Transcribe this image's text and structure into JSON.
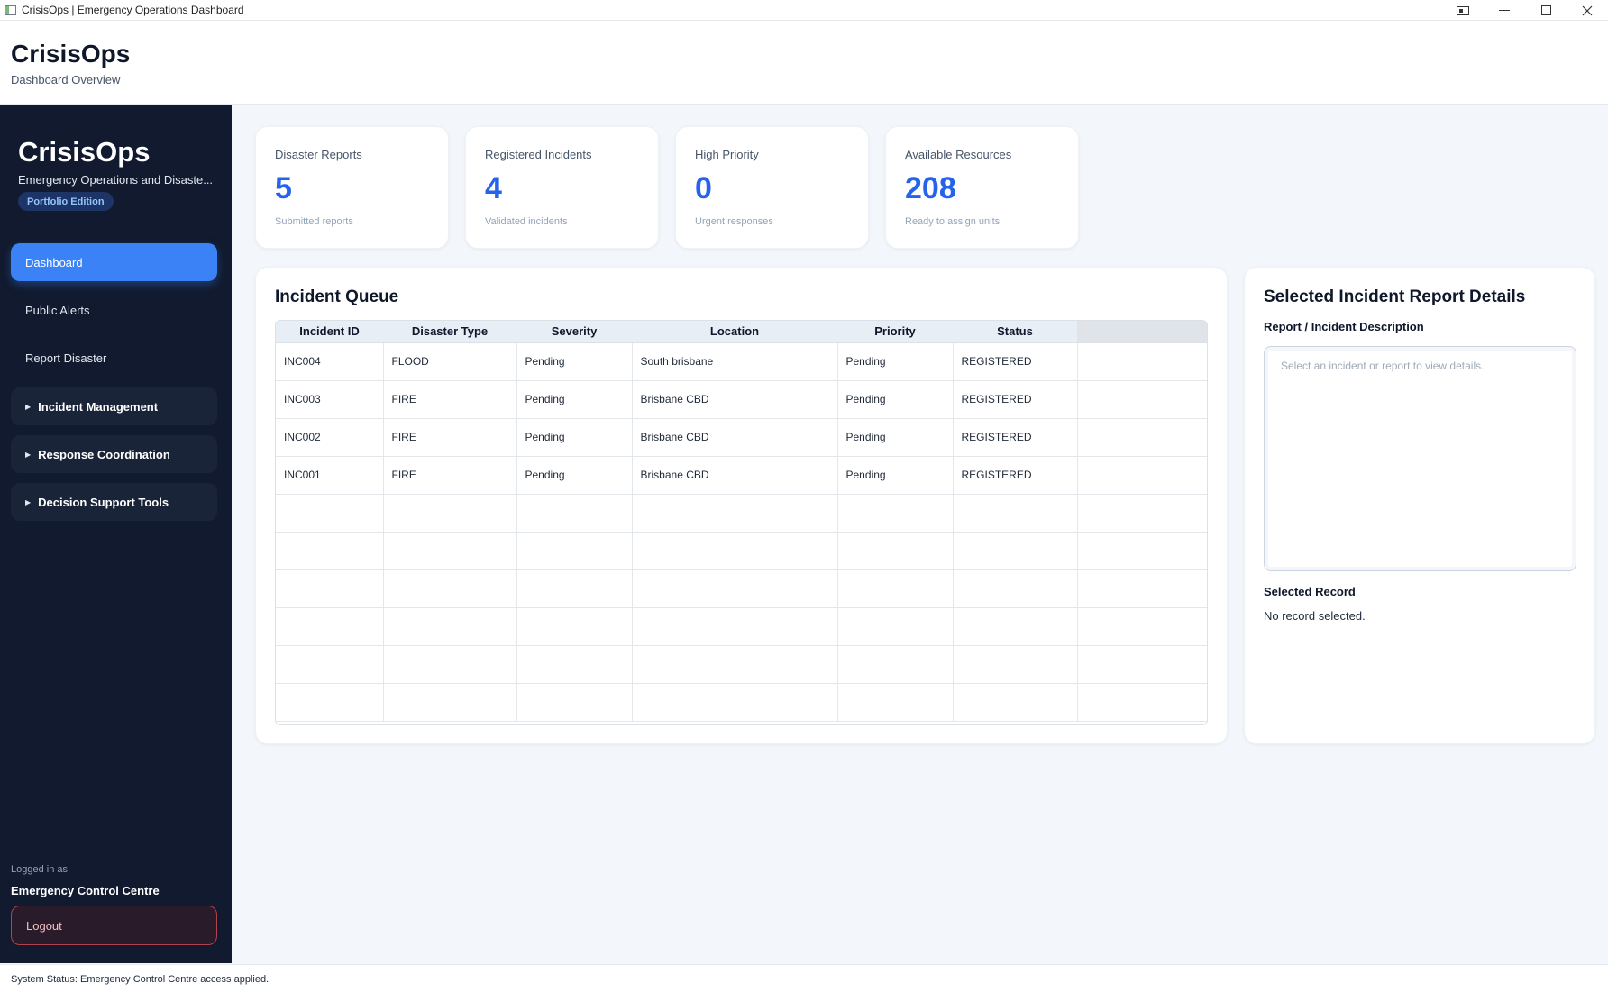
{
  "window": {
    "title": "CrisisOps | Emergency Operations Dashboard"
  },
  "header": {
    "brand": "CrisisOps",
    "subtitle": "Dashboard Overview"
  },
  "sidebar": {
    "title": "CrisisOps",
    "description": "Emergency Operations and Disaste...",
    "badge": "Portfolio Edition",
    "items": [
      {
        "label": "Dashboard"
      },
      {
        "label": "Public Alerts"
      },
      {
        "label": "Report Disaster"
      }
    ],
    "groups": [
      {
        "label": "Incident Management"
      },
      {
        "label": "Response Coordination"
      },
      {
        "label": "Decision Support Tools"
      }
    ],
    "logged_in_label": "Logged in as",
    "logged_in_user": "Emergency Control Centre",
    "logout_label": "Logout"
  },
  "stats": [
    {
      "label": "Disaster Reports",
      "value": "5",
      "sub": "Submitted reports"
    },
    {
      "label": "Registered Incidents",
      "value": "4",
      "sub": "Validated incidents"
    },
    {
      "label": "High Priority",
      "value": "0",
      "sub": "Urgent responses"
    },
    {
      "label": "Available Resources",
      "value": "208",
      "sub": "Ready to assign units"
    }
  ],
  "queue": {
    "title": "Incident Queue",
    "columns": [
      "Incident ID",
      "Disaster Type",
      "Severity",
      "Location",
      "Priority",
      "Status"
    ],
    "rows": [
      [
        "INC004",
        "FLOOD",
        "Pending",
        "South brisbane",
        "Pending",
        "REGISTERED"
      ],
      [
        "INC003",
        "FIRE",
        "Pending",
        "Brisbane CBD",
        "Pending",
        "REGISTERED"
      ],
      [
        "INC002",
        "FIRE",
        "Pending",
        "Brisbane CBD",
        "Pending",
        "REGISTERED"
      ],
      [
        "INC001",
        "FIRE",
        "Pending",
        "Brisbane CBD",
        "Pending",
        "REGISTERED"
      ]
    ]
  },
  "details": {
    "title": "Selected Incident Report Details",
    "description_label": "Report / Incident Description",
    "description_placeholder": "Select an incident or report to view details.",
    "record_label": "Selected Record",
    "record_value": "No record selected."
  },
  "status": {
    "text": "System Status: Emergency Control Centre access applied."
  },
  "colors": {
    "accent": "#3b82f6",
    "sidebar_bg": "#111a2e",
    "value_blue": "#2563eb",
    "logout_border": "#b4424e"
  }
}
